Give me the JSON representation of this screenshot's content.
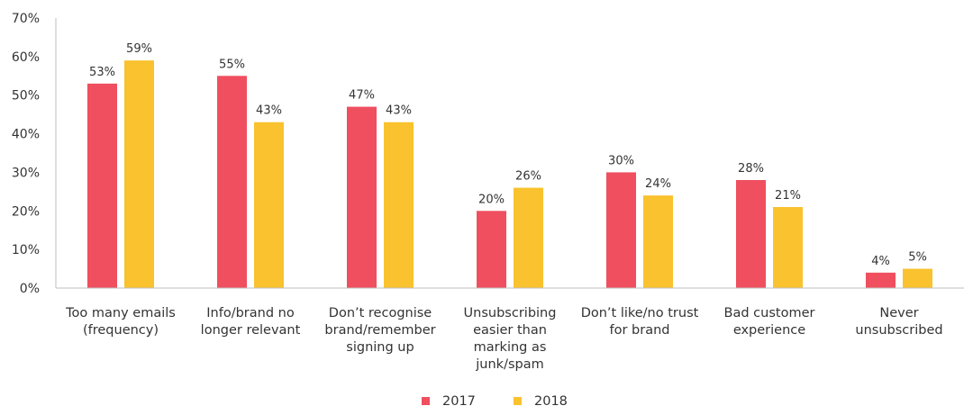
{
  "chart_data": {
    "type": "bar",
    "categories": [
      [
        "Too many emails",
        "(frequency)"
      ],
      [
        "Info/brand no",
        "longer relevant"
      ],
      [
        "Don’t recognise",
        "brand/remember",
        "signing up"
      ],
      [
        "Unsubscribing",
        "easier than",
        "marking as",
        "junk/spam"
      ],
      [
        "Don’t like/no trust",
        "for brand"
      ],
      [
        "Bad customer",
        "experience"
      ],
      [
        "Never",
        "unsubscribed"
      ]
    ],
    "series": [
      {
        "name": "2017",
        "color": "#ef4f5f",
        "values": [
          53,
          55,
          47,
          20,
          30,
          28,
          4
        ],
        "labels": [
          "53%",
          "55%",
          "47%",
          "20%",
          "30%",
          "28%",
          "4%"
        ]
      },
      {
        "name": "2018",
        "color": "#f9c22e",
        "values": [
          59,
          43,
          43,
          26,
          24,
          21,
          5
        ],
        "labels": [
          "59%",
          "43%",
          "43%",
          "26%",
          "24%",
          "21%",
          "5%"
        ]
      }
    ],
    "ylim": [
      0,
      70
    ],
    "yticks": [
      "0%",
      "10%",
      "20%",
      "30%",
      "40%",
      "50%",
      "60%",
      "70%"
    ],
    "ytick_values": [
      0,
      10,
      20,
      30,
      40,
      50,
      60,
      70
    ],
    "title": "",
    "xlabel": "",
    "ylabel": "",
    "grid": false,
    "legend_position": "bottom-center",
    "axis_color": "#bfbfbf"
  }
}
